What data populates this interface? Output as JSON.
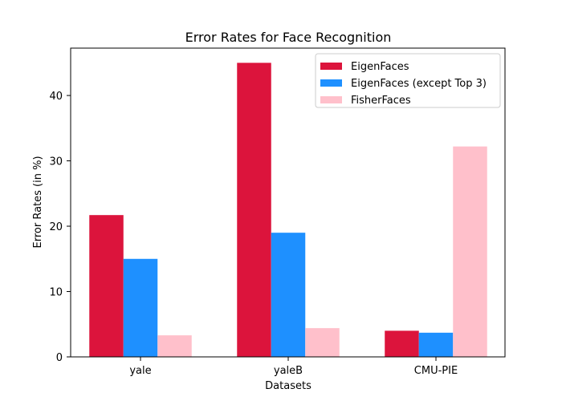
{
  "chart_data": {
    "type": "bar",
    "title": "Error Rates for Face Recognition",
    "xlabel": "Datasets",
    "ylabel": "Error Rates (in %)",
    "categories": [
      "yale",
      "yaleB",
      "CMU-PIE"
    ],
    "series": [
      {
        "name": "EigenFaces",
        "color": "#dc143c",
        "values": [
          21.7,
          45.0,
          4.0
        ]
      },
      {
        "name": "EigenFaces (except Top 3)",
        "color": "#1e90ff",
        "values": [
          15.0,
          19.0,
          3.7
        ]
      },
      {
        "name": "FisherFaces",
        "color": "#ffc0cb",
        "values": [
          3.3,
          4.4,
          32.2
        ]
      }
    ],
    "ylim": [
      0,
      47.25
    ],
    "yticks": [
      0,
      10,
      20,
      30,
      40
    ],
    "grid": false,
    "legend_position": "top-right"
  }
}
